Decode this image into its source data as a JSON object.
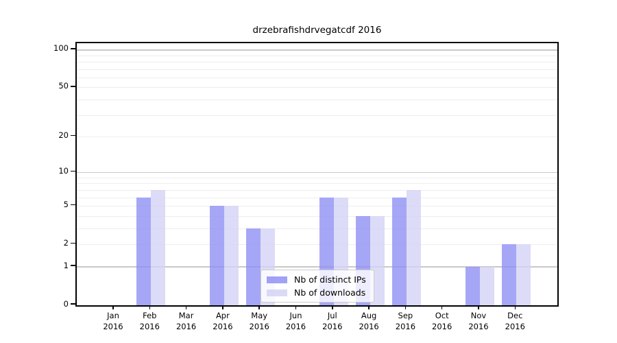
{
  "chart_data": {
    "type": "bar",
    "title": "drzebrafishdrvegatcdf 2016",
    "categories": [
      "Jan 2016",
      "Feb 2016",
      "Mar 2016",
      "Apr 2016",
      "May 2016",
      "Jun 2016",
      "Jul 2016",
      "Aug 2016",
      "Sep 2016",
      "Oct 2016",
      "Nov 2016",
      "Dec 2016"
    ],
    "series": [
      {
        "name": "Nb of distinct IPs",
        "color": "#9090f5",
        "values": [
          0,
          6,
          0,
          5,
          3,
          0,
          6,
          4,
          6,
          0,
          1,
          2
        ]
      },
      {
        "name": "Nb of downloads",
        "color": "#d3d3f6",
        "values": [
          0,
          7,
          0,
          5,
          3,
          0,
          6,
          4,
          7,
          0,
          1,
          2
        ]
      }
    ],
    "xlabel": "",
    "ylabel": "",
    "yscale": "log1p",
    "ylim": [
      0,
      113
    ],
    "yticks": [
      0,
      1,
      2,
      5,
      10,
      20,
      50,
      100
    ],
    "major_gridlines": [
      1,
      10,
      100
    ],
    "minor_gridlines": [
      2,
      3,
      4,
      5,
      6,
      7,
      8,
      9,
      20,
      30,
      40,
      50,
      60,
      70,
      80,
      90
    ],
    "grid": true,
    "legend_position": "lower center",
    "colors": {
      "axis": "#000000",
      "text": "#000000",
      "major_grid": "#c9c9c9",
      "minor_grid": "#ededed",
      "background": "#ffffff"
    }
  }
}
